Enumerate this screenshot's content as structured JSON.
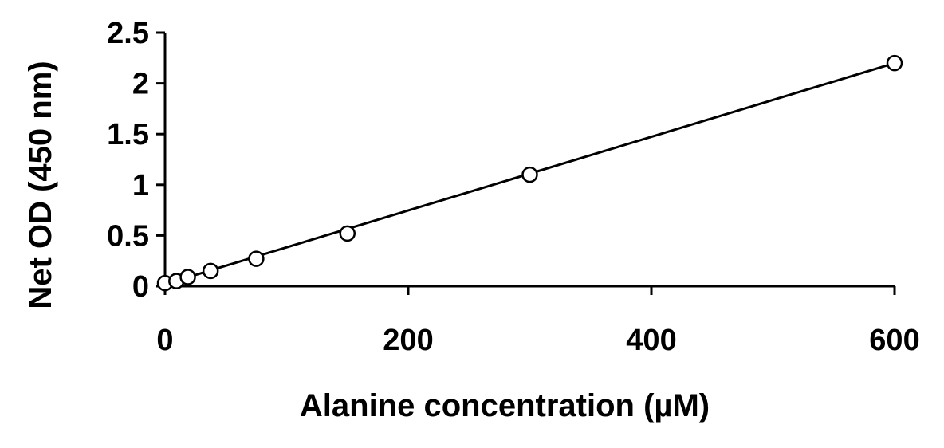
{
  "chart_data": {
    "type": "scatter",
    "title": "",
    "xlabel": "Alanine concentration (µM)",
    "ylabel": "Net OD (450 nm)",
    "xlim": [
      0,
      600
    ],
    "ylim": [
      0,
      2.5
    ],
    "x_ticks": [
      0,
      200,
      400,
      600
    ],
    "x_tick_labels": [
      "0",
      "200",
      "400",
      "600"
    ],
    "y_ticks": [
      0,
      0.5,
      1,
      1.5,
      2,
      2.5
    ],
    "y_tick_labels": [
      "0",
      "0.5",
      "1",
      "1.5",
      "2",
      "2.5"
    ],
    "grid": false,
    "legend": "none",
    "series": [
      {
        "marker": "open-circle",
        "color": "#000000",
        "points": [
          {
            "x": 0,
            "y": 0.03
          },
          {
            "x": 9.375,
            "y": 0.05
          },
          {
            "x": 18.75,
            "y": 0.09
          },
          {
            "x": 37.5,
            "y": 0.15
          },
          {
            "x": 75,
            "y": 0.27
          },
          {
            "x": 150,
            "y": 0.52
          },
          {
            "x": 300,
            "y": 1.1
          },
          {
            "x": 600,
            "y": 2.2
          }
        ]
      }
    ],
    "trendline": {
      "type": "linear",
      "color": "#000000",
      "from": {
        "x": 0,
        "y": 0.02
      },
      "to": {
        "x": 600,
        "y": 2.2
      }
    }
  }
}
